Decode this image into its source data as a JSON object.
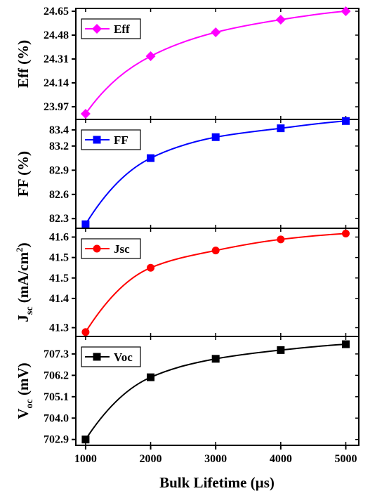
{
  "chart_data": [
    {
      "type": "line",
      "ylabel": "Eff (%)",
      "x": [
        1000,
        2000,
        3000,
        4000,
        5000
      ],
      "series": [
        {
          "name": "Eff",
          "values": [
            23.92,
            24.33,
            24.5,
            24.59,
            24.65
          ]
        }
      ],
      "ylim": [
        23.88,
        24.67
      ],
      "yticks": [
        "23.97",
        "24.14",
        "24.31",
        "24.48",
        "24.65"
      ],
      "ytick_values": [
        23.97,
        24.14,
        24.31,
        24.48,
        24.65
      ],
      "marker": "diamond",
      "color": "#ff00ff",
      "legend_position": "top-left"
    },
    {
      "type": "line",
      "ylabel": "FF (%)",
      "x": [
        1000,
        2000,
        3000,
        4000,
        5000
      ],
      "series": [
        {
          "name": "FF",
          "values": [
            82.23,
            83.05,
            83.31,
            83.42,
            83.51
          ]
        }
      ],
      "ylim": [
        82.18,
        83.53
      ],
      "yticks": [
        "82.3",
        "82.6",
        "82.9",
        "83.2",
        "83.4"
      ],
      "ytick_values": [
        82.3,
        82.6,
        82.9,
        83.2,
        83.4
      ],
      "marker": "square",
      "color": "#0000ff",
      "legend_position": "top-left"
    },
    {
      "type": "line",
      "ylabel": "Jsc (mA/cm2)",
      "ylabel_main": "J",
      "ylabel_sub": "sc",
      "ylabel_rest": " (mA/cm",
      "ylabel_sup": "2",
      "ylabel_end": ")",
      "x": [
        1000,
        2000,
        3000,
        4000,
        5000
      ],
      "series": [
        {
          "name": "Jsc",
          "values": [
            41.285,
            41.505,
            41.564,
            41.602,
            41.622
          ]
        }
      ],
      "ylim": [
        41.27,
        41.64
      ],
      "yticks": [
        "41.3",
        "41.4",
        "41.5",
        "41.5",
        "41.6"
      ],
      "ytick_values": [
        41.3,
        41.4,
        41.47,
        41.54,
        41.61
      ],
      "marker": "circle",
      "color": "#ff0000",
      "legend_position": "top-left"
    },
    {
      "type": "line",
      "ylabel": "Voc (mV)",
      "ylabel_main": "V",
      "ylabel_sub": "oc",
      "ylabel_rest": " (mV)",
      "x": [
        1000,
        2000,
        3000,
        4000,
        5000
      ],
      "series": [
        {
          "name": "Voc",
          "values": [
            702.9,
            706.1,
            707.05,
            707.5,
            707.8
          ]
        }
      ],
      "ylim": [
        702.6,
        708.2
      ],
      "yticks": [
        "702.9",
        "704.0",
        "705.1",
        "706.2",
        "707.3"
      ],
      "ytick_values": [
        702.9,
        704.0,
        705.1,
        706.2,
        707.3
      ],
      "marker": "square",
      "color": "#000000",
      "legend_position": "top-left"
    }
  ],
  "shared_x": {
    "label": "Bulk Lifetime (µs)",
    "ticks": [
      1000,
      2000,
      3000,
      4000,
      5000
    ],
    "xlim": [
      850,
      5200
    ]
  }
}
